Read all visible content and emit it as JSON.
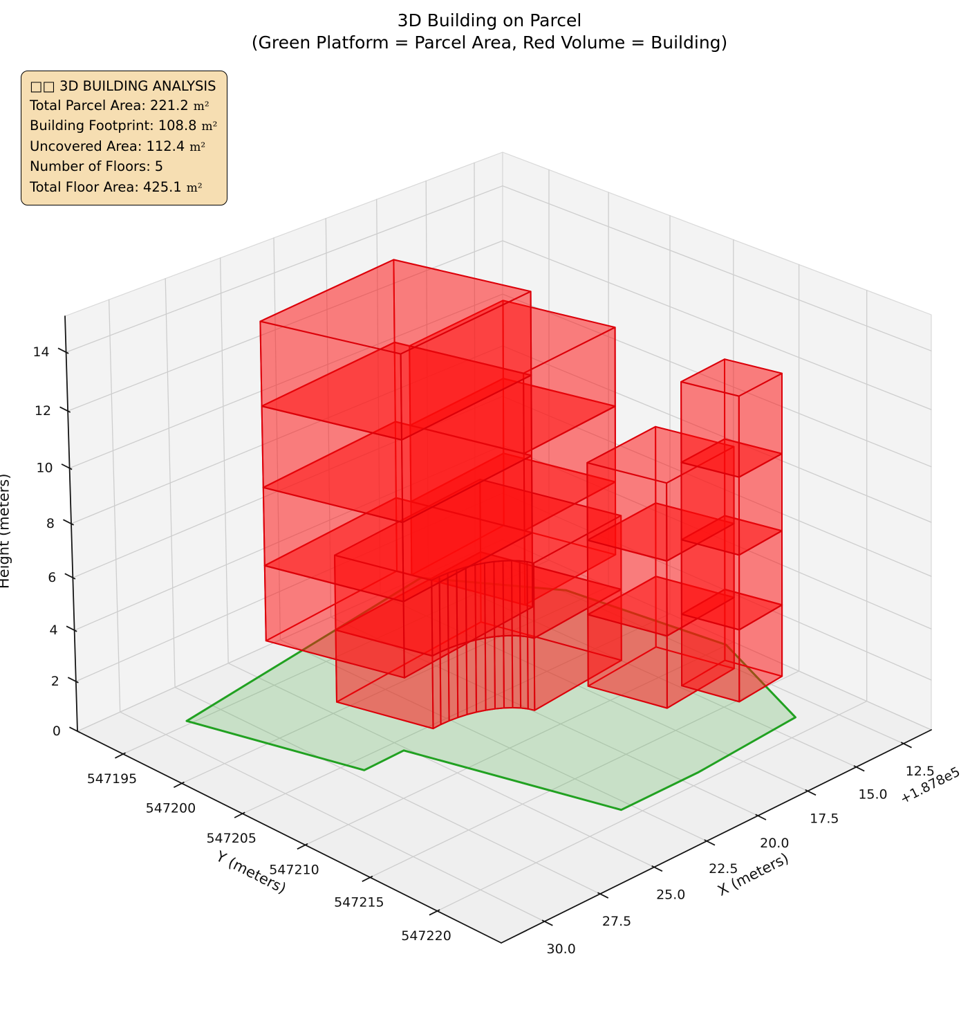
{
  "title": {
    "line1": "3D Building on Parcel",
    "line2": "(Green Platform = Parcel Area, Red Volume = Building)"
  },
  "info_box": {
    "header": "□□ 3D BUILDING ANALYSIS",
    "rows": [
      {
        "label": "Total Parcel Area:",
        "value": "221.2",
        "unit": "m²"
      },
      {
        "label": "Building Footprint:",
        "value": "108.8",
        "unit": "m²"
      },
      {
        "label": "Uncovered Area:",
        "value": "112.4",
        "unit": "m²"
      },
      {
        "label": "Number of Floors:",
        "value": "5",
        "unit": ""
      },
      {
        "label": "Total Floor Area:",
        "value": "425.1",
        "unit": "m²"
      }
    ]
  },
  "chart_data": {
    "type": "3d_building_massing",
    "axes": {
      "x": {
        "label": "X (meters)",
        "offset_text": "+1.878e5",
        "ticks": [
          12.5,
          15.0,
          17.5,
          20.0,
          22.5,
          25.0,
          27.5,
          30.0
        ],
        "tick_labels": [
          "12.5",
          "15.0",
          "17.5",
          "20.0",
          "22.5",
          "25.0",
          "27.5",
          "30.0"
        ],
        "range": [
          11.0,
          31.9
        ]
      },
      "y": {
        "label": "Y (meters)",
        "ticks": [
          547195,
          547200,
          547205,
          547210,
          547215,
          547220
        ],
        "tick_labels": [
          "547195",
          "547200",
          "547205",
          "547210",
          "547215",
          "547220"
        ],
        "range": [
          547191.0,
          547224.6
        ]
      },
      "z": {
        "label": "Height (meters)",
        "ticks": [
          0,
          2,
          4,
          6,
          8,
          10,
          12,
          14
        ],
        "tick_labels": [
          "0",
          "2",
          "4",
          "6",
          "8",
          "10",
          "12",
          "14"
        ],
        "range": [
          0,
          15.2
        ]
      }
    },
    "parcel": {
      "polygon_xy": [
        [
          28.9,
          547194.7
        ],
        [
          27.1,
          547206.2
        ],
        [
          25.2,
          547206.1
        ],
        [
          23.0,
          547219.2
        ],
        [
          19.2,
          547219.2
        ],
        [
          13.8,
          547218.6
        ],
        [
          11.4,
          547210.0
        ],
        [
          12.4,
          547198.6
        ],
        [
          15.5,
          547191.2
        ]
      ]
    },
    "building": {
      "origin_xy": [
        28.35,
        547195.5
      ],
      "u_dir": [
        -0.156,
        0.988
      ],
      "v_dir": [
        -0.988,
        -0.156
      ],
      "floor_levels": [
        0,
        2.9,
        5.8,
        8.7,
        11.6,
        14.5
      ],
      "parts": [
        {
          "name": "podium",
          "u": [
            4.2,
            13.5
          ],
          "v": [
            3.4,
            11.4
          ],
          "z": [
            0,
            5.8
          ],
          "notch_radius": 3.0
        },
        {
          "name": "left-tower",
          "u": [
            2.0,
            11.0
          ],
          "v": [
            1.5,
            8.5
          ],
          "z": [
            2.9,
            14.5
          ]
        },
        {
          "name": "mid-block",
          "u": [
            3.0,
            10.5
          ],
          "v": [
            8.5,
            13.8
          ],
          "z": [
            2.9,
            11.6
          ]
        },
        {
          "name": "right-low",
          "u": [
            14.0,
            19.0
          ],
          "v": [
            9.0,
            13.0
          ],
          "z": [
            0,
            8.7
          ]
        },
        {
          "name": "right-tower",
          "u": [
            18.0,
            21.6
          ],
          "v": [
            10.8,
            13.4
          ],
          "z": [
            0,
            11.6
          ]
        }
      ]
    },
    "colors": {
      "pane_wall": "#f3f3f3",
      "pane_floor": "#efefef",
      "grid": "#cdcdcd",
      "spine": "#141414",
      "tick_text": "#111111",
      "parcel_fill": "rgba(66,171,58,0.22)",
      "parcel_edge": "#21a121",
      "building_fill": "rgba(255,13,13,0.30)",
      "building_edge": "rgba(219,0,10,0.95)",
      "info_bg": "#f6deb2"
    },
    "legend_position": "upper-left-infobox",
    "grid": true
  }
}
